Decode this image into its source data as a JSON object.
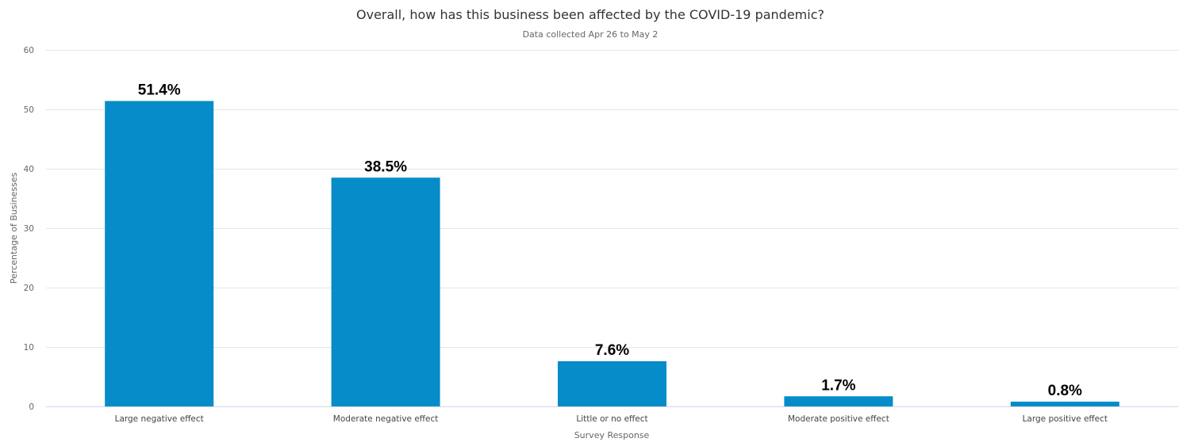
{
  "chart_data": {
    "type": "bar",
    "title": "Overall, how has this business been affected by the COVID-19 pandemic?",
    "subtitle": "Data collected Apr 26 to May 2",
    "xlabel": "Survey Response",
    "ylabel": "Percentage of Businesses",
    "ylim": [
      0,
      60
    ],
    "yticks": [
      0,
      10,
      20,
      30,
      40,
      50,
      60
    ],
    "grid": true,
    "categories": [
      "Large negative effect",
      "Moderate negative effect",
      "Little or no effect",
      "Moderate positive effect",
      "Large positive effect"
    ],
    "values": [
      51.4,
      38.5,
      7.6,
      1.7,
      0.8
    ],
    "data_labels": [
      "51.4%",
      "38.5%",
      "7.6%",
      "1.7%",
      "0.8%"
    ],
    "bar_color": "#068cc8"
  }
}
